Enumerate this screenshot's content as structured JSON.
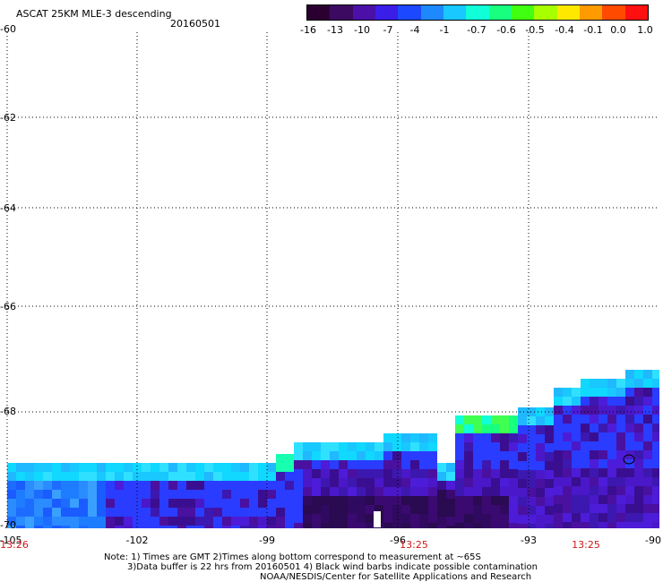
{
  "header": {
    "title": "ASCAT 25KM MLE-3 descending",
    "date": "20160501"
  },
  "colorbar": {
    "labels": [
      "-16",
      "-13",
      "-10",
      "-7",
      "-4",
      "-1",
      "-0.7",
      "-0.6",
      "-0.5",
      "-0.4",
      "-0.1",
      "0.0",
      "1.0"
    ],
    "colors": [
      "#2a0030",
      "#3c0a60",
      "#4a10a8",
      "#3a1ee8",
      "#1c48ff",
      "#1e88ff",
      "#18c8ff",
      "#10ffd8",
      "#18ff80",
      "#40ff10",
      "#a8ff00",
      "#ffe800",
      "#ff9a00",
      "#ff4a00",
      "#ff1010"
    ]
  },
  "map": {
    "lat_labels": [
      "-60",
      "-62",
      "-64",
      "-66",
      "-68",
      "-70"
    ],
    "lon_labels": [
      "-105",
      "-102",
      "-99",
      "-96",
      "-93",
      "-90"
    ],
    "time_labels": [
      "13:26",
      "13:25",
      "13:25"
    ]
  },
  "notes": [
    "Note: 1) Times are GMT 2)Times along bottom correspond to measurement at ~65S",
    "3)Data buffer is 22 hrs from 20160501 4) Black wind barbs indicate possible contamination",
    "NOAA/NESDIS/Center for Satellite Applications and Research"
  ]
}
